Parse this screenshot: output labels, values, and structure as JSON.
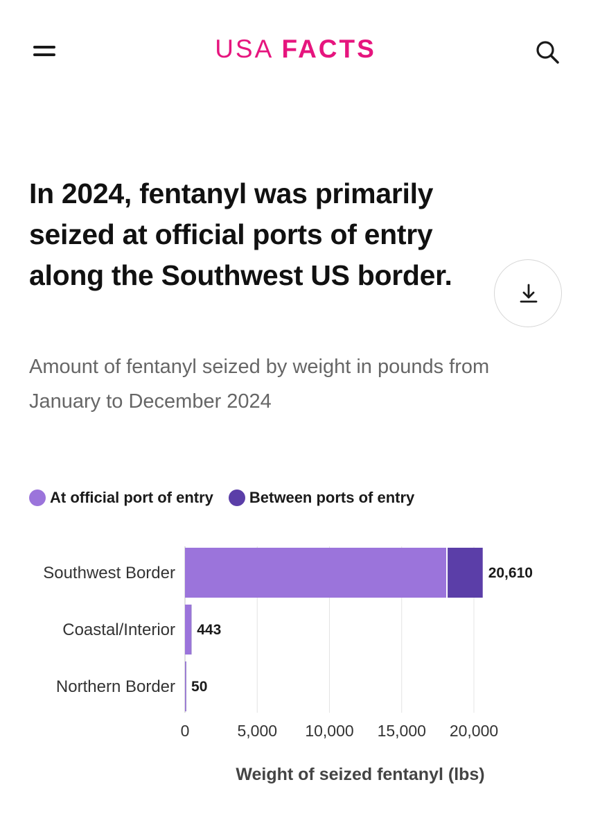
{
  "header": {
    "logo_part1": "USA",
    "logo_part2": "FACTS",
    "logo_color": "#e6157e",
    "menu_icon": "hamburger-menu-icon",
    "search_icon": "search-icon"
  },
  "title": "In 2024, fentanyl was primarily seized at official ports of entry along the Southwest US border.",
  "subtitle": "Amount of fentanyl seized by weight in pounds from January to December 2024",
  "download_icon": "download-icon",
  "chart_data": {
    "type": "bar",
    "orientation": "horizontal",
    "stacked": true,
    "categories": [
      "Southwest Border",
      "Coastal/Interior",
      "Northern Border"
    ],
    "series": [
      {
        "name": "At official port of entry",
        "color": "#9b74db",
        "values": [
          18180,
          420,
          48
        ]
      },
      {
        "name": "Between ports of entry",
        "color": "#5b3ea8",
        "values": [
          2430,
          23,
          2
        ]
      }
    ],
    "totals": [
      20610,
      443,
      50
    ],
    "total_labels": [
      "20,610",
      "443",
      "50"
    ],
    "xlabel": "Weight of seized fentanyl (lbs)",
    "xlim": [
      0,
      22000
    ],
    "xticks": [
      0,
      5000,
      10000,
      15000,
      20000
    ],
    "xtick_labels": [
      "0",
      "5,000",
      "10,000",
      "15,000",
      "20,000"
    ],
    "grid": true,
    "legend_position": "top-left"
  }
}
